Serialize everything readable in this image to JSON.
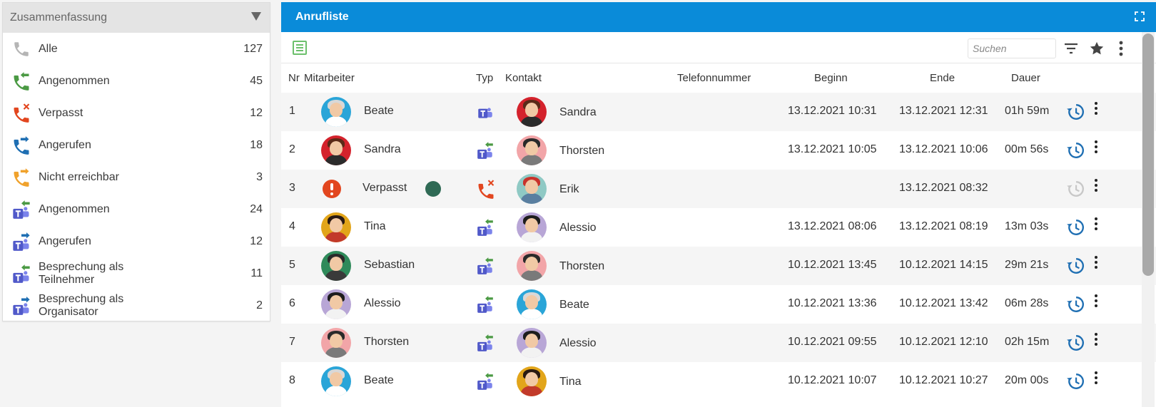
{
  "summary": {
    "title": "Zusammenfassung",
    "items": [
      {
        "label": "Alle",
        "count": "127",
        "icon": "phone-icon"
      },
      {
        "label": "Angenommen",
        "count": "45",
        "icon": "phone-incoming-icon"
      },
      {
        "label": "Verpasst",
        "count": "12",
        "icon": "phone-missed-icon"
      },
      {
        "label": "Angerufen",
        "count": "18",
        "icon": "phone-outgoing-icon"
      },
      {
        "label": "Nicht erreichbar",
        "count": "3",
        "icon": "phone-unreachable-icon"
      },
      {
        "label": "Angenommen",
        "count": "24",
        "icon": "teams-incoming-icon"
      },
      {
        "label": "Angerufen",
        "count": "12",
        "icon": "teams-outgoing-icon"
      },
      {
        "label": "Besprechung als Teilnehmer",
        "count": "11",
        "icon": "teams-meeting-participant-icon"
      },
      {
        "label": "Besprechung als Organisator",
        "count": "2",
        "icon": "teams-meeting-organizer-icon"
      }
    ]
  },
  "calllist": {
    "title": "Anrufliste",
    "search_placeholder": "Suchen",
    "columns": {
      "nr": "Nr",
      "mitarbeiter": "Mitarbeiter",
      "typ": "Typ",
      "kontakt": "Kontakt",
      "telefonnummer": "Telefonnummer",
      "beginn": "Beginn",
      "ende": "Ende",
      "dauer": "Dauer"
    },
    "rows": [
      {
        "nr": "1",
        "mitarbeiter": "Beate",
        "typ": "teams-icon",
        "kontakt": "Sandra",
        "telefonnummer": "",
        "beginn": "13.12.2021 10:31",
        "ende": "13.12.2021 12:31",
        "dauer": "01h 59m"
      },
      {
        "nr": "2",
        "mitarbeiter": "Sandra",
        "typ": "teams-incoming-icon",
        "kontakt": "Thorsten",
        "telefonnummer": "",
        "beginn": "13.12.2021 10:05",
        "ende": "13.12.2021 10:06",
        "dauer": "00m 56s"
      },
      {
        "nr": "3",
        "mitarbeiter": "Verpasst",
        "typ": "phone-missed-icon",
        "kontakt": "Erik",
        "telefonnummer": "",
        "beginn": "",
        "ende": "13.12.2021 08:32",
        "dauer": ""
      },
      {
        "nr": "4",
        "mitarbeiter": "Tina",
        "typ": "teams-incoming-icon",
        "kontakt": "Alessio",
        "telefonnummer": "",
        "beginn": "13.12.2021 08:06",
        "ende": "13.12.2021 08:19",
        "dauer": "13m 03s"
      },
      {
        "nr": "5",
        "mitarbeiter": "Sebastian",
        "typ": "teams-incoming-icon",
        "kontakt": "Thorsten",
        "telefonnummer": "",
        "beginn": "10.12.2021 13:45",
        "ende": "10.12.2021 14:15",
        "dauer": "29m 21s"
      },
      {
        "nr": "6",
        "mitarbeiter": "Alessio",
        "typ": "teams-incoming-icon",
        "kontakt": "Beate",
        "telefonnummer": "",
        "beginn": "10.12.2021 13:36",
        "ende": "10.12.2021 13:42",
        "dauer": "06m 28s"
      },
      {
        "nr": "7",
        "mitarbeiter": "Thorsten",
        "typ": "teams-incoming-icon",
        "kontakt": "Alessio",
        "telefonnummer": "",
        "beginn": "10.12.2021 09:55",
        "ende": "10.12.2021 12:10",
        "dauer": "02h 15m"
      },
      {
        "nr": "8",
        "mitarbeiter": "Beate",
        "typ": "teams-incoming-icon",
        "kontakt": "Tina",
        "telefonnummer": "",
        "beginn": "10.12.2021 10:07",
        "ende": "10.12.2021 10:27",
        "dauer": "20m 00s"
      }
    ]
  },
  "colors": {
    "accent": "#0a8bd9",
    "incoming": "#4b9a44",
    "missed": "#e2461f",
    "outgoing": "#1f6fb3",
    "unreachable": "#f0a22c",
    "teams": "#5059c9"
  }
}
